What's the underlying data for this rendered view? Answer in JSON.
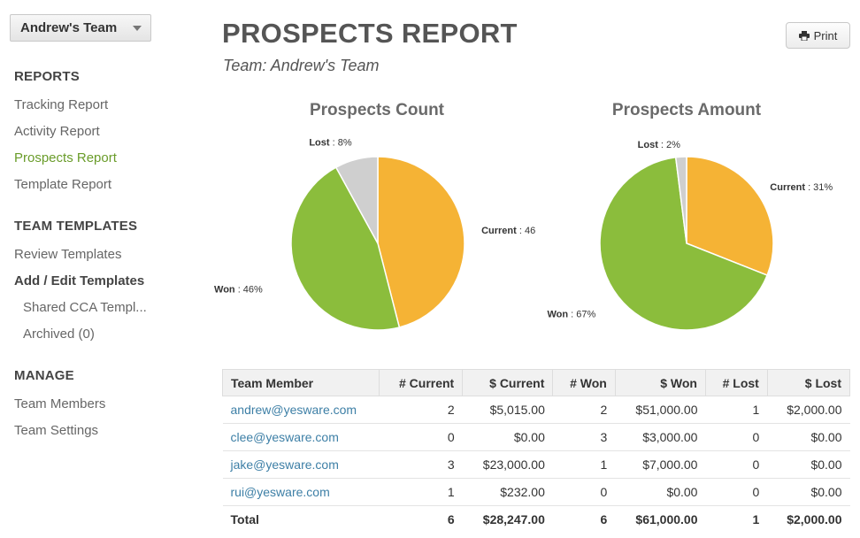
{
  "sidebar": {
    "team_select": "Andrew's Team",
    "sections": [
      {
        "heading": "REPORTS",
        "items": [
          "Tracking Report",
          "Activity Report",
          "Prospects Report",
          "Template Report"
        ]
      },
      {
        "heading": "TEAM TEMPLATES",
        "items": [
          "Review Templates",
          "Add / Edit Templates",
          "Shared CCA Templ...",
          "Archived (0)"
        ]
      },
      {
        "heading": "MANAGE",
        "items": [
          "Team Members",
          "Team Settings"
        ]
      }
    ],
    "active_item": "Prospects Report"
  },
  "header": {
    "title": "PROSPECTS REPORT",
    "subtitle": "Team: Andrew's Team",
    "print_label": "Print"
  },
  "chart_data": [
    {
      "type": "pie",
      "title": "Prospects Count",
      "slices": [
        {
          "name": "Current",
          "label_value": "46",
          "value": 46,
          "color": "#f5b335"
        },
        {
          "name": "Won",
          "label_value": "46%",
          "value": 46,
          "color": "#8bbd3c"
        },
        {
          "name": "Lost",
          "label_value": "8%",
          "value": 8,
          "color": "#cfcfcf"
        }
      ]
    },
    {
      "type": "pie",
      "title": "Prospects Amount",
      "slices": [
        {
          "name": "Current",
          "label_value": "31%",
          "value": 31,
          "color": "#f5b335"
        },
        {
          "name": "Won",
          "label_value": "67%",
          "value": 67,
          "color": "#8bbd3c"
        },
        {
          "name": "Lost",
          "label_value": "2%",
          "value": 2,
          "color": "#cfcfcf"
        }
      ]
    }
  ],
  "table": {
    "columns": [
      "Team Member",
      "# Current",
      "$ Current",
      "# Won",
      "$ Won",
      "# Lost",
      "$ Lost"
    ],
    "rows": [
      [
        "andrew@yesware.com",
        "2",
        "$5,015.00",
        "2",
        "$51,000.00",
        "1",
        "$2,000.00"
      ],
      [
        "clee@yesware.com",
        "0",
        "$0.00",
        "3",
        "$3,000.00",
        "0",
        "$0.00"
      ],
      [
        "jake@yesware.com",
        "3",
        "$23,000.00",
        "1",
        "$7,000.00",
        "0",
        "$0.00"
      ],
      [
        "rui@yesware.com",
        "1",
        "$232.00",
        "0",
        "$0.00",
        "0",
        "$0.00"
      ]
    ],
    "total": [
      "Total",
      "6",
      "$28,247.00",
      "6",
      "$61,000.00",
      "1",
      "$2,000.00"
    ]
  }
}
